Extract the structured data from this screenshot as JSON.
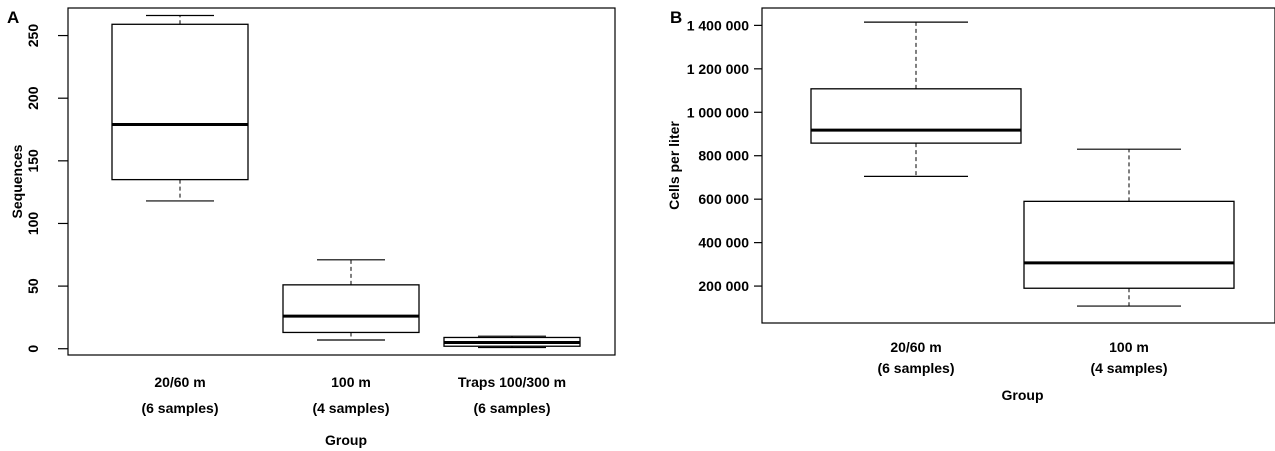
{
  "chart_data": [
    {
      "type": "box",
      "panel_label": "A",
      "xlabel": "Group",
      "ylabel": "Sequences",
      "ylim": [
        -5,
        272
      ],
      "yticks": [
        {
          "value": 0,
          "label": "0"
        },
        {
          "value": 50,
          "label": "50"
        },
        {
          "value": 100,
          "label": "100"
        },
        {
          "value": 150,
          "label": "150"
        },
        {
          "value": 200,
          "label": "200"
        },
        {
          "value": 250,
          "label": "250"
        }
      ],
      "categories": [
        {
          "line1": "20/60 m",
          "line2": "(6 samples)"
        },
        {
          "line1": "100 m",
          "line2": "(4 samples)"
        },
        {
          "line1": "Traps 100/300 m",
          "line2": "(6 samples)"
        }
      ],
      "boxes": [
        {
          "min": 118,
          "q1": 135,
          "median": 179,
          "q3": 259,
          "max": 266
        },
        {
          "min": 7,
          "q1": 13,
          "median": 26,
          "q3": 51,
          "max": 71
        },
        {
          "min": 1,
          "q1": 2,
          "median": 5,
          "q3": 9,
          "max": 10
        }
      ]
    },
    {
      "type": "box",
      "panel_label": "B",
      "xlabel": "Group",
      "ylabel": "Cells per liter",
      "ylim": [
        30000,
        1480000
      ],
      "yticks": [
        {
          "value": 200000,
          "label": "200 000"
        },
        {
          "value": 400000,
          "label": "400 000"
        },
        {
          "value": 600000,
          "label": "600 000"
        },
        {
          "value": 800000,
          "label": "800 000"
        },
        {
          "value": 1000000,
          "label": "1 000 000"
        },
        {
          "value": 1200000,
          "label": "1 200 000"
        },
        {
          "value": 1400000,
          "label": "1 400 000"
        }
      ],
      "categories": [
        {
          "line1": "20/60 m",
          "line2": "(6 samples)"
        },
        {
          "line1": "100 m",
          "line2": "(4 samples)"
        }
      ],
      "boxes": [
        {
          "min": 705000,
          "q1": 858000,
          "median": 918000,
          "q3": 1108000,
          "max": 1415000
        },
        {
          "min": 108000,
          "q1": 190000,
          "median": 307000,
          "q3": 590000,
          "max": 830000
        }
      ]
    }
  ]
}
